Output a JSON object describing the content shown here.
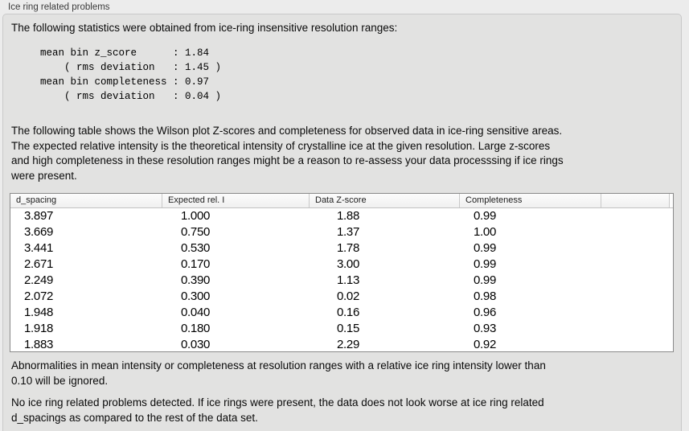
{
  "panel": {
    "title": "Ice ring related problems"
  },
  "intro_text": "The following statistics were obtained from ice-ring insensitive resolution ranges:",
  "stats_block": "mean bin z_score      : 1.84\n    ( rms deviation   : 1.45 )\nmean bin completeness : 0.97\n    ( rms deviation   : 0.04 )",
  "stats": {
    "mean_bin_z_score": "1.84",
    "z_score_rms_deviation": "1.45",
    "mean_bin_completeness": "0.97",
    "completeness_rms_deviation": "0.04"
  },
  "table_description": "The following table shows the Wilson plot Z-scores and completeness for observed data in ice-ring sensitive areas.\nThe expected relative intensity is the theoretical intensity of crystalline ice at the given resolution. Large z-scores\nand high completeness in these resolution ranges might be a reason to re-assess your data processsing if ice rings\nwere present.",
  "table": {
    "columns": [
      "d_spacing",
      "Expected rel. I",
      "Data Z-score",
      "Completeness",
      ""
    ],
    "rows": [
      [
        "3.897",
        "1.000",
        "1.88",
        "0.99"
      ],
      [
        "3.669",
        "0.750",
        "1.37",
        "1.00"
      ],
      [
        "3.441",
        "0.530",
        "1.78",
        "0.99"
      ],
      [
        "2.671",
        "0.170",
        "3.00",
        "0.99"
      ],
      [
        "2.249",
        "0.390",
        "1.13",
        "0.99"
      ],
      [
        "2.072",
        "0.300",
        "0.02",
        "0.98"
      ],
      [
        "1.948",
        "0.040",
        "0.16",
        "0.96"
      ],
      [
        "1.918",
        "0.180",
        "0.15",
        "0.93"
      ],
      [
        "1.883",
        "0.030",
        "2.29",
        "0.92"
      ]
    ]
  },
  "footnote_text": "Abnormalities in mean intensity or completeness at resolution ranges with a relative ice ring intensity lower than\n0.10 will be ignored.",
  "conclusion_text": "No ice ring related problems detected. If ice rings were present, the data does not look worse at ice ring related\nd_spacings as compared to the rest of the data set.",
  "colors": {
    "page_background": "#ececec",
    "panel_background": "#e2e2e1",
    "table_background": "#ffffff",
    "text": "#0a0a0a"
  }
}
